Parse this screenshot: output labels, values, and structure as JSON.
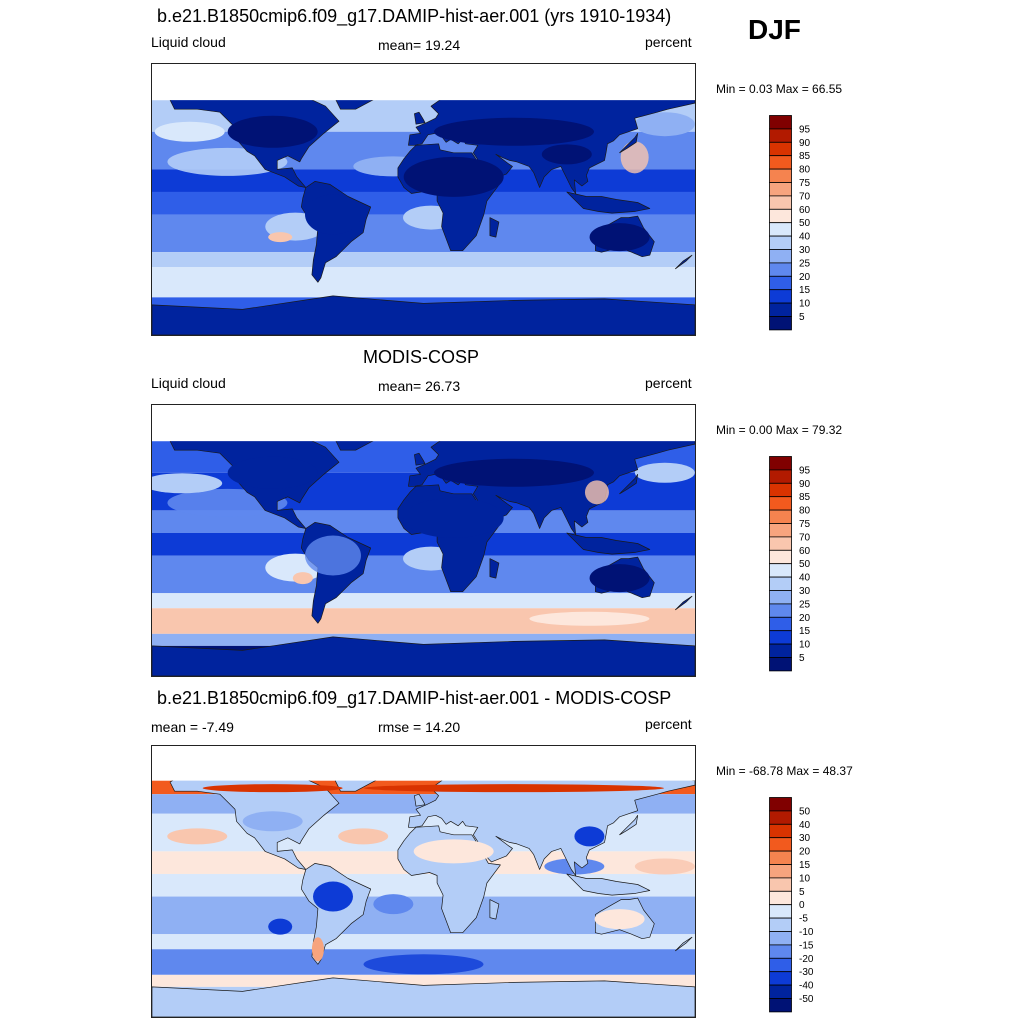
{
  "season": "DJF",
  "panels": [
    {
      "title": "b.e21.B1850cmip6.f09_g17.DAMIP-hist-aer.001 (yrs 1910-1934)",
      "left_label": "Liquid cloud",
      "center_label": "mean=  19.24",
      "right_label": "percent",
      "minmax": "Min =   0.03 Max =  66.55",
      "colorbar": {
        "labels": [
          "95",
          "90",
          "85",
          "80",
          "75",
          "70",
          "60",
          "50",
          "40",
          "30",
          "25",
          "20",
          "15",
          "10",
          "5"
        ],
        "colors": [
          "#800000",
          "#b21a00",
          "#d93300",
          "#f25a1e",
          "#f5834f",
          "#f7a47e",
          "#f9c6ae",
          "#fde7dc",
          "#d9e8fb",
          "#b3cdf7",
          "#8fb0f3",
          "#5f88ee",
          "#2f5ee8",
          "#0d3bd6",
          "#00239e",
          "#001275"
        ]
      }
    },
    {
      "title": "MODIS-COSP",
      "left_label": "Liquid cloud",
      "center_label": "mean=  26.73",
      "right_label": "percent",
      "minmax": "Min =   0.00 Max =  79.32",
      "colorbar": {
        "labels": [
          "95",
          "90",
          "85",
          "80",
          "75",
          "70",
          "60",
          "50",
          "40",
          "30",
          "25",
          "20",
          "15",
          "10",
          "5"
        ],
        "colors": [
          "#800000",
          "#b21a00",
          "#d93300",
          "#f25a1e",
          "#f5834f",
          "#f7a47e",
          "#f9c6ae",
          "#fde7dc",
          "#d9e8fb",
          "#b3cdf7",
          "#8fb0f3",
          "#5f88ee",
          "#2f5ee8",
          "#0d3bd6",
          "#00239e",
          "#001275"
        ]
      }
    },
    {
      "title": "b.e21.B1850cmip6.f09_g17.DAMIP-hist-aer.001 - MODIS-COSP",
      "left_label": "mean =  -7.49",
      "center_label": "rmse =  14.20",
      "right_label": "percent",
      "minmax": "Min = -68.78 Max =  48.37",
      "colorbar": {
        "labels": [
          "50",
          "40",
          "30",
          "20",
          "15",
          "10",
          "5",
          "0",
          "-5",
          "-10",
          "-15",
          "-20",
          "-30",
          "-40",
          "-50"
        ],
        "colors": [
          "#800000",
          "#b21a00",
          "#d93300",
          "#f25a1e",
          "#f5834f",
          "#f7a47e",
          "#f9c6ae",
          "#fde7dc",
          "#d9e8fb",
          "#b3cdf7",
          "#8fb0f3",
          "#5f88ee",
          "#2f5ee8",
          "#0d3bd6",
          "#00239e",
          "#001275"
        ]
      }
    }
  ]
}
